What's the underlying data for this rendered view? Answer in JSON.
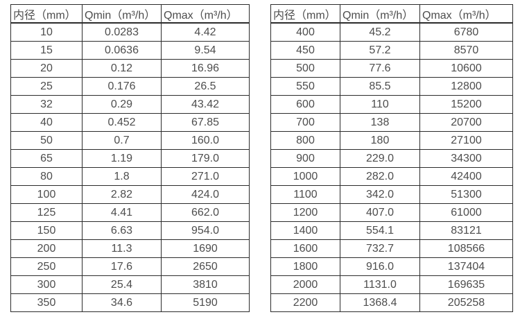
{
  "page": {
    "background_color": "#ffffff",
    "text_color": "#4d4d4d",
    "border_color": "#2b2b2b"
  },
  "tables": [
    {
      "title": "flow-spec-table-small-diameters",
      "headers": [
        "内径（mm）",
        "Qmin（m³/h）",
        "Qmax（m³/h）"
      ],
      "rows": [
        [
          "10",
          "0.0283",
          "4.42"
        ],
        [
          "15",
          "0.0636",
          "9.54"
        ],
        [
          "20",
          "0.12",
          "16.96"
        ],
        [
          "25",
          "0.176",
          "26.5"
        ],
        [
          "32",
          "0.29",
          "43.42"
        ],
        [
          "40",
          "0.452",
          "67.85"
        ],
        [
          "50",
          "0.7",
          "160.0"
        ],
        [
          "65",
          "1.19",
          "179.0"
        ],
        [
          "80",
          "1.8",
          "271.0"
        ],
        [
          "100",
          "2.82",
          "424.0"
        ],
        [
          "125",
          "4.41",
          "662.0"
        ],
        [
          "150",
          "6.63",
          "954.0"
        ],
        [
          "200",
          "11.3",
          "1690"
        ],
        [
          "250",
          "17.6",
          "2650"
        ],
        [
          "300",
          "25.4",
          "3810"
        ],
        [
          "350",
          "34.6",
          "5190"
        ]
      ]
    },
    {
      "title": "flow-spec-table-large-diameters",
      "headers": [
        "内径（mm）",
        "Qmin（m³/h）",
        "Qmax（m³/h）"
      ],
      "rows": [
        [
          "400",
          "45.2",
          "6780"
        ],
        [
          "450",
          "57.2",
          "8570"
        ],
        [
          "500",
          "77.6",
          "10600"
        ],
        [
          "550",
          "85.5",
          "12800"
        ],
        [
          "600",
          "110",
          "15200"
        ],
        [
          "700",
          "138",
          "20700"
        ],
        [
          "800",
          "180",
          "27100"
        ],
        [
          "900",
          "229.0",
          "34300"
        ],
        [
          "1000",
          "282.0",
          "42400"
        ],
        [
          "1100",
          "342.0",
          "51300"
        ],
        [
          "1200",
          "407.0",
          "61000"
        ],
        [
          "1400",
          "554.1",
          "83121"
        ],
        [
          "1600",
          "732.7",
          "108566"
        ],
        [
          "1800",
          "916.0",
          "137404"
        ],
        [
          "2000",
          "1131.0",
          "169635"
        ],
        [
          "2200",
          "1368.4",
          "205258"
        ]
      ]
    }
  ]
}
